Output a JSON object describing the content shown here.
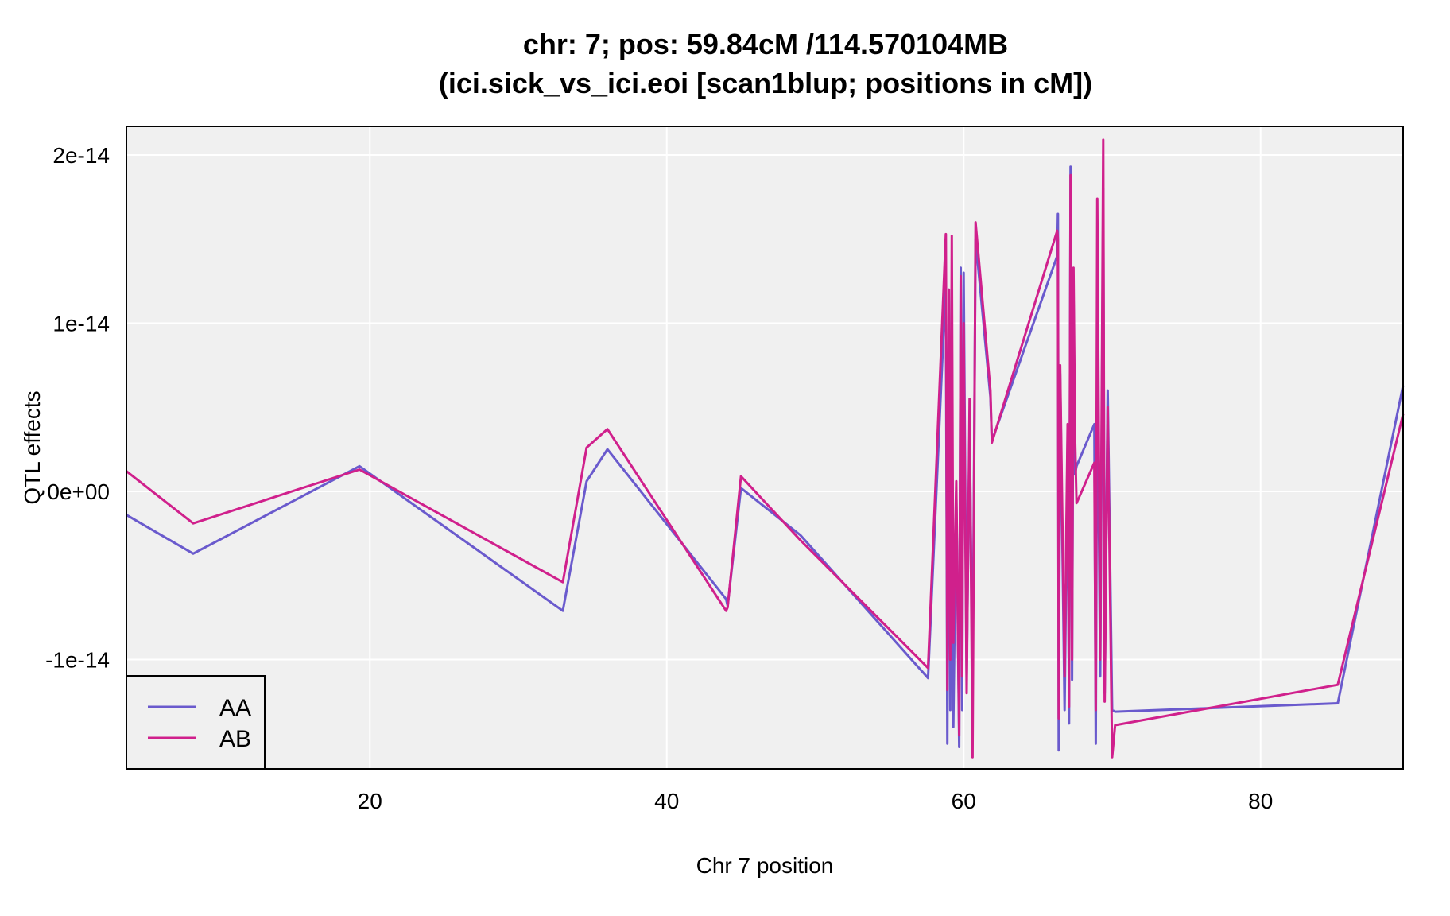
{
  "chart_data": {
    "type": "line",
    "title": "chr: 7; pos: 59.84cM /114.570104MB",
    "subtitle": "(ici.sick_vs_ici.eoi [scan1blup; positions in cM])",
    "xlabel": "Chr 7 position",
    "ylabel": "QTL effects",
    "xlim": [
      3.6,
      89.6
    ],
    "ylim": [
      -1.65e-14,
      2.17e-14
    ],
    "xticks": [
      20,
      40,
      60,
      80
    ],
    "xtick_labels": [
      "20",
      "40",
      "60",
      "80"
    ],
    "yticks": [
      -1e-14,
      0,
      1e-14,
      2e-14
    ],
    "ytick_labels": [
      "-1e-14",
      "0e+00",
      "1e-14",
      "2e-14"
    ],
    "grid": true,
    "legend_position": "bottom-left",
    "background": "#f0f0f0",
    "series": [
      {
        "name": "AA",
        "color": "#6a5acd",
        "x": [
          3.6,
          8.1,
          19.3,
          33.0,
          34.6,
          36.0,
          44.0,
          44.1,
          45.0,
          49.0,
          57.6,
          58.8,
          58.9,
          59.0,
          59.1,
          59.2,
          59.3,
          59.5,
          59.7,
          59.8,
          59.9,
          60.0,
          60.2,
          60.4,
          60.6,
          60.8,
          61.8,
          61.9,
          66.3,
          66.35,
          66.4,
          66.5,
          66.8,
          67.0,
          67.1,
          67.2,
          67.3,
          67.4,
          67.5,
          67.6,
          68.8,
          68.9,
          69.0,
          69.2,
          69.4,
          69.5,
          69.7,
          70.0,
          70.2,
          85.2,
          89.6
        ],
        "y": [
          -1.4e-15,
          -3.7e-15,
          1.5e-15,
          -7.1e-15,
          6e-16,
          2.5e-15,
          -6.4e-15,
          -6.8e-15,
          2e-16,
          -2.6e-15,
          -1.11e-14,
          1.25e-14,
          -1.5e-14,
          1.2e-14,
          -1.3e-14,
          1.1e-14,
          -1.4e-14,
          0,
          -1.52e-14,
          1.33e-14,
          -1.3e-14,
          1.3e-14,
          -1.1e-14,
          4e-15,
          -1.2e-14,
          1.5e-14,
          5.6e-15,
          3e-15,
          1.4e-14,
          1.65e-14,
          -1.54e-14,
          7e-15,
          -1.3e-14,
          3e-15,
          -1.38e-14,
          1.93e-14,
          -1.12e-14,
          1.2e-14,
          1e-15,
          1.5e-15,
          4e-15,
          -1.5e-14,
          9e-15,
          -1.1e-14,
          1.8e-14,
          -1.2e-14,
          6e-15,
          -1.3e-14,
          -1.31e-14,
          -1.26e-14,
          6.3e-15
        ]
      },
      {
        "name": "AB",
        "color": "#d0208c",
        "x": [
          3.6,
          8.1,
          19.3,
          33.0,
          34.6,
          36.0,
          44.0,
          44.1,
          45.0,
          49.0,
          57.6,
          58.8,
          58.9,
          59.0,
          59.1,
          59.2,
          59.3,
          59.5,
          59.7,
          59.8,
          59.9,
          60.0,
          60.2,
          60.4,
          60.6,
          60.8,
          61.8,
          61.9,
          66.3,
          66.35,
          66.4,
          66.5,
          66.8,
          67.0,
          67.1,
          67.2,
          67.3,
          67.4,
          67.5,
          67.6,
          68.8,
          68.9,
          69.0,
          69.2,
          69.4,
          69.5,
          69.7,
          70.0,
          70.2,
          85.2,
          89.6
        ],
        "y": [
          1.2e-15,
          -1.9e-15,
          1.3e-15,
          -5.4e-15,
          2.6e-15,
          3.7e-15,
          -7.1e-15,
          -6.9e-15,
          9e-16,
          -2.9e-15,
          -1.05e-14,
          1.53e-14,
          -1.18e-14,
          1.2e-14,
          -1e-14,
          1.52e-14,
          -9e-15,
          6e-16,
          -1.45e-14,
          1.28e-14,
          -1.1e-14,
          1e-14,
          -1.2e-14,
          5.5e-15,
          -1.58e-14,
          1.6e-14,
          6e-15,
          2.9e-15,
          1.55e-14,
          1.5e-14,
          -1.35e-14,
          7.5e-15,
          -1.1e-14,
          4e-15,
          -1.28e-14,
          1.88e-14,
          -1e-14,
          1.33e-14,
          3.3e-15,
          -7e-16,
          1.7e-15,
          -1.3e-14,
          1.74e-14,
          -1e-14,
          2.09e-14,
          -1.25e-14,
          5e-15,
          -1.58e-14,
          -1.39e-14,
          -1.15e-14,
          4.6e-15
        ]
      }
    ]
  }
}
